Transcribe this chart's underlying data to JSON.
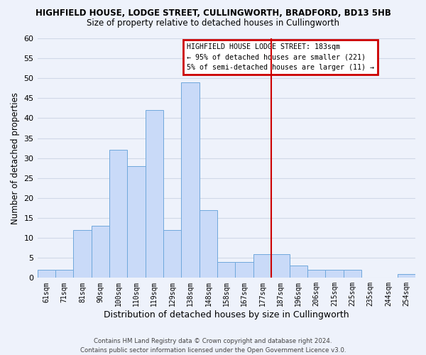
{
  "title": "HIGHFIELD HOUSE, LODGE STREET, CULLINGWORTH, BRADFORD, BD13 5HB",
  "subtitle": "Size of property relative to detached houses in Cullingworth",
  "xlabel": "Distribution of detached houses by size in Cullingworth",
  "ylabel": "Number of detached properties",
  "bar_labels": [
    "61sqm",
    "71sqm",
    "81sqm",
    "90sqm",
    "100sqm",
    "110sqm",
    "119sqm",
    "129sqm",
    "138sqm",
    "148sqm",
    "158sqm",
    "167sqm",
    "177sqm",
    "187sqm",
    "196sqm",
    "206sqm",
    "215sqm",
    "225sqm",
    "235sqm",
    "244sqm",
    "254sqm"
  ],
  "bar_values": [
    2,
    2,
    12,
    13,
    32,
    28,
    42,
    12,
    49,
    17,
    4,
    4,
    6,
    6,
    3,
    2,
    2,
    2,
    0,
    0,
    1
  ],
  "bar_color": "#c9daf8",
  "bar_edge_color": "#6fa8dc",
  "grid_color": "#d0d8e8",
  "ylim": [
    0,
    60
  ],
  "yticks": [
    0,
    5,
    10,
    15,
    20,
    25,
    30,
    35,
    40,
    45,
    50,
    55,
    60
  ],
  "vline_color": "#cc0000",
  "vline_index": 13,
  "annotation_title": "HIGHFIELD HOUSE LODGE STREET: 183sqm",
  "annotation_line1": "← 95% of detached houses are smaller (221)",
  "annotation_line2": "5% of semi-detached houses are larger (11) →",
  "footer_line1": "Contains HM Land Registry data © Crown copyright and database right 2024.",
  "footer_line2": "Contains public sector information licensed under the Open Government Licence v3.0.",
  "bg_color": "#eef2fb"
}
